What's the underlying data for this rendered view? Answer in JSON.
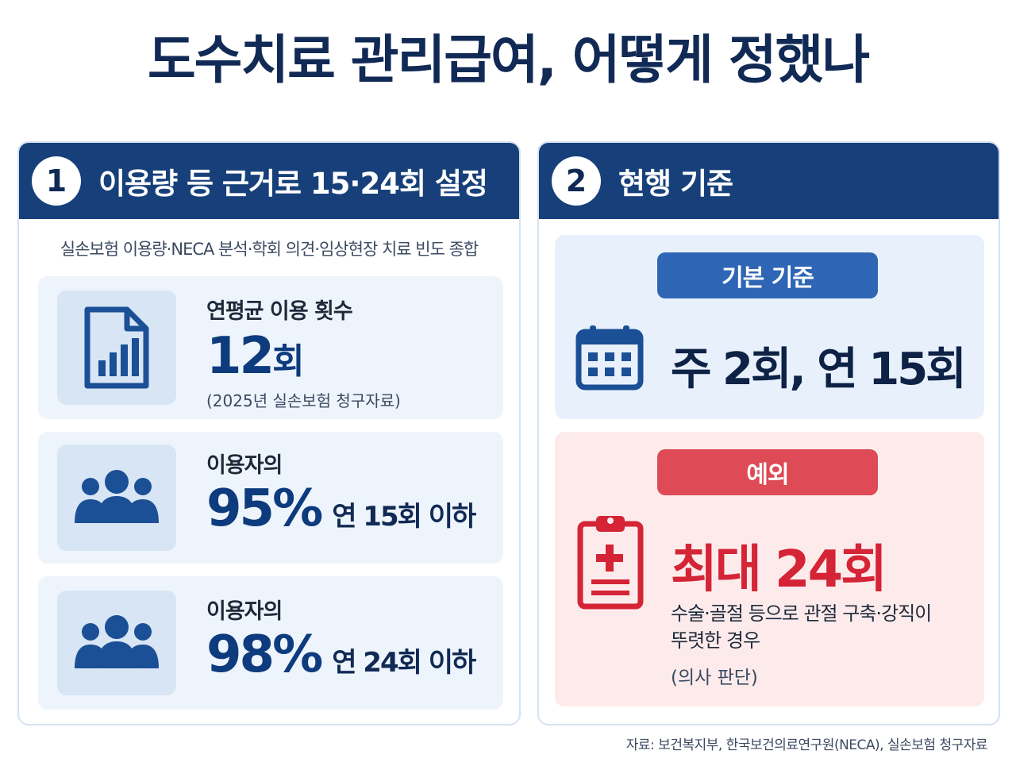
{
  "title": "도수치료 관리급여, 어떻게 정했나",
  "panel1": {
    "number": "1",
    "title": "이용량 등 근거로 15·24회 설정",
    "subtitle": "실손보험 이용량·NECA 분석·학회 의견·임상현장 치료 빈도 종합",
    "stats": [
      {
        "icon": "document-chart-icon",
        "label": "연평균 이용 횟수",
        "value": "12",
        "unit": "회",
        "note": "(2025년 실손보험 청구자료)"
      },
      {
        "icon": "users-group-icon",
        "label": "이용자의",
        "value": "95",
        "unit": "%",
        "desc": "연 15회 이하"
      },
      {
        "icon": "users-group-icon",
        "label": "이용자의",
        "value": "98",
        "unit": "%",
        "desc": "연 24회 이하"
      }
    ]
  },
  "panel2": {
    "number": "2",
    "title": "현행 기준",
    "basic": {
      "label": "기본 기준",
      "icon": "calendar-icon",
      "value": "주 2회, 연 15회"
    },
    "exception": {
      "label": "예외",
      "icon": "medical-clipboard-icon",
      "value": "최대 24회",
      "desc_line1": "수술·골절 등으로 관절 구축·강직이",
      "desc_line2": "뚜렷한 경우",
      "note": "(의사 판단)"
    }
  },
  "source": "자료: 보건복지부, 한국보건의료연구원(NECA), 실손보험 청구자료",
  "colors": {
    "navy": "#17407a",
    "blue_accent": "#2e66b5",
    "red_accent": "#de4a55",
    "red_text": "#d42436"
  }
}
